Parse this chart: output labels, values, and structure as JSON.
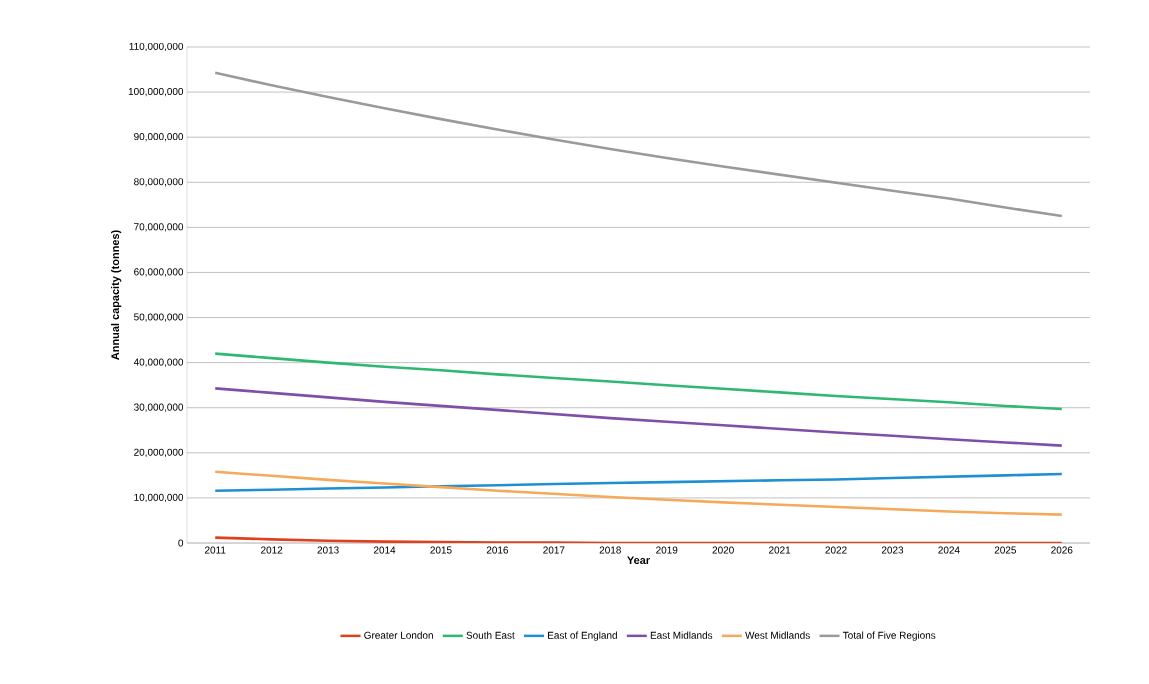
{
  "chart_data": {
    "type": "line",
    "xlabel": "Year",
    "ylabel": "Annual capacity (tonnes)",
    "categories": [
      "2011",
      "2012",
      "2013",
      "2014",
      "2015",
      "2016",
      "2017",
      "2018",
      "2019",
      "2020",
      "2021",
      "2022",
      "2023",
      "2024",
      "2025",
      "2026"
    ],
    "series": [
      {
        "name": "Greater London",
        "color": "#e0401c",
        "values": [
          1200000,
          800000,
          500000,
          300000,
          200000,
          100000,
          100000,
          0,
          0,
          0,
          0,
          0,
          0,
          0,
          0,
          0
        ]
      },
      {
        "name": "South East",
        "color": "#2eb872",
        "values": [
          42000000,
          41000000,
          40000000,
          39100000,
          38300000,
          37400000,
          36600000,
          35800000,
          35000000,
          34200000,
          33400000,
          32600000,
          31900000,
          31200000,
          30400000,
          29700000
        ]
      },
      {
        "name": "East of England",
        "color": "#1e8fd0",
        "values": [
          11600000,
          11800000,
          12100000,
          12300000,
          12600000,
          12800000,
          13100000,
          13300000,
          13500000,
          13700000,
          13900000,
          14100000,
          14400000,
          14700000,
          15000000,
          15300000
        ]
      },
      {
        "name": "East Midlands",
        "color": "#7f4fa8",
        "values": [
          34300000,
          33300000,
          32300000,
          31300000,
          30400000,
          29500000,
          28600000,
          27700000,
          26900000,
          26100000,
          25300000,
          24500000,
          23800000,
          23000000,
          22300000,
          21600000
        ]
      },
      {
        "name": "West Midlands",
        "color": "#f5a95a",
        "values": [
          15800000,
          14900000,
          14000000,
          13200000,
          12400000,
          11600000,
          10900000,
          10200000,
          9600000,
          9000000,
          8500000,
          8000000,
          7500000,
          7000000,
          6600000,
          6300000
        ]
      },
      {
        "name": "Total of Five Regions",
        "color": "#9a9a9a",
        "values": [
          104300000,
          101500000,
          98900000,
          96400000,
          94000000,
          91700000,
          89500000,
          87400000,
          85400000,
          83500000,
          81700000,
          79900000,
          78100000,
          76400000,
          74400000,
          72500000
        ]
      }
    ],
    "ylim": [
      0,
      110000000
    ],
    "yticks": [
      {
        "value": 0,
        "label": "0"
      },
      {
        "value": 10000000,
        "label": "10,000,000"
      },
      {
        "value": 20000000,
        "label": "20,000,000"
      },
      {
        "value": 30000000,
        "label": "30,000,000"
      },
      {
        "value": 40000000,
        "label": "40,000,000"
      },
      {
        "value": 50000000,
        "label": "50,000,000"
      },
      {
        "value": 60000000,
        "label": "60,000,000"
      },
      {
        "value": 70000000,
        "label": "70,000,000"
      },
      {
        "value": 80000000,
        "label": "80,000,000"
      },
      {
        "value": 90000000,
        "label": "90,000,000"
      },
      {
        "value": 100000000,
        "label": "100,000,000"
      },
      {
        "value": 110000000,
        "label": "110,000,000"
      }
    ],
    "grid": "y",
    "legend": "bottom",
    "marker": "none",
    "line_style": "solid"
  }
}
